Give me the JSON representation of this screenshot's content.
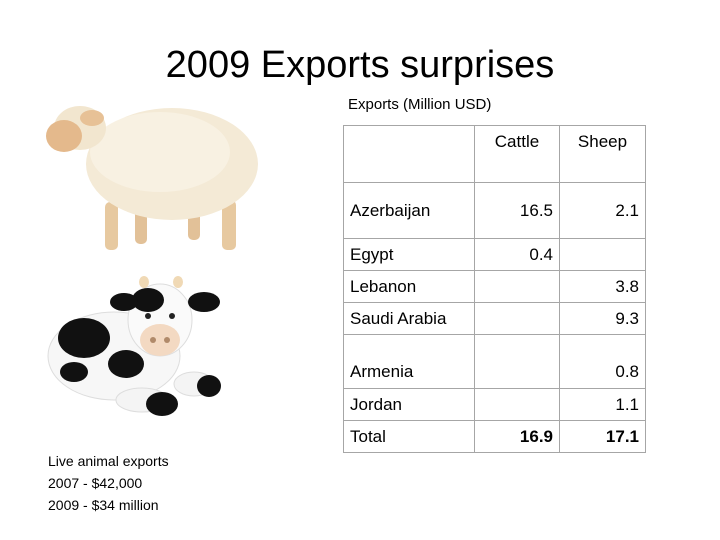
{
  "slide": {
    "title": "2009 Exports surprises",
    "table_caption": "Exports (Million USD)"
  },
  "table": {
    "headers": [
      "",
      "Cattle",
      "Sheep"
    ],
    "rows": [
      {
        "country": "Azerbaijan",
        "cattle": "16.5",
        "sheep": "2.1"
      },
      {
        "country": "Egypt",
        "cattle": "0.4",
        "sheep": ""
      },
      {
        "country": "Lebanon",
        "cattle": "",
        "sheep": "3.8"
      },
      {
        "country": "Saudi Arabia",
        "cattle": "",
        "sheep": "9.3"
      },
      {
        "country": "Armenia",
        "cattle": "",
        "sheep": "0.8"
      },
      {
        "country": "Jordan",
        "cattle": "",
        "sheep": "1.1"
      },
      {
        "country": "Total",
        "cattle": "16.9",
        "sheep": "17.1"
      }
    ]
  },
  "notes": {
    "line1": "Live animal exports",
    "line2": "2007 - $42,000",
    "line3": "2009 - $34 million"
  },
  "images": {
    "sheep": "sheep-toy",
    "cow": "cow-plush-toy"
  }
}
